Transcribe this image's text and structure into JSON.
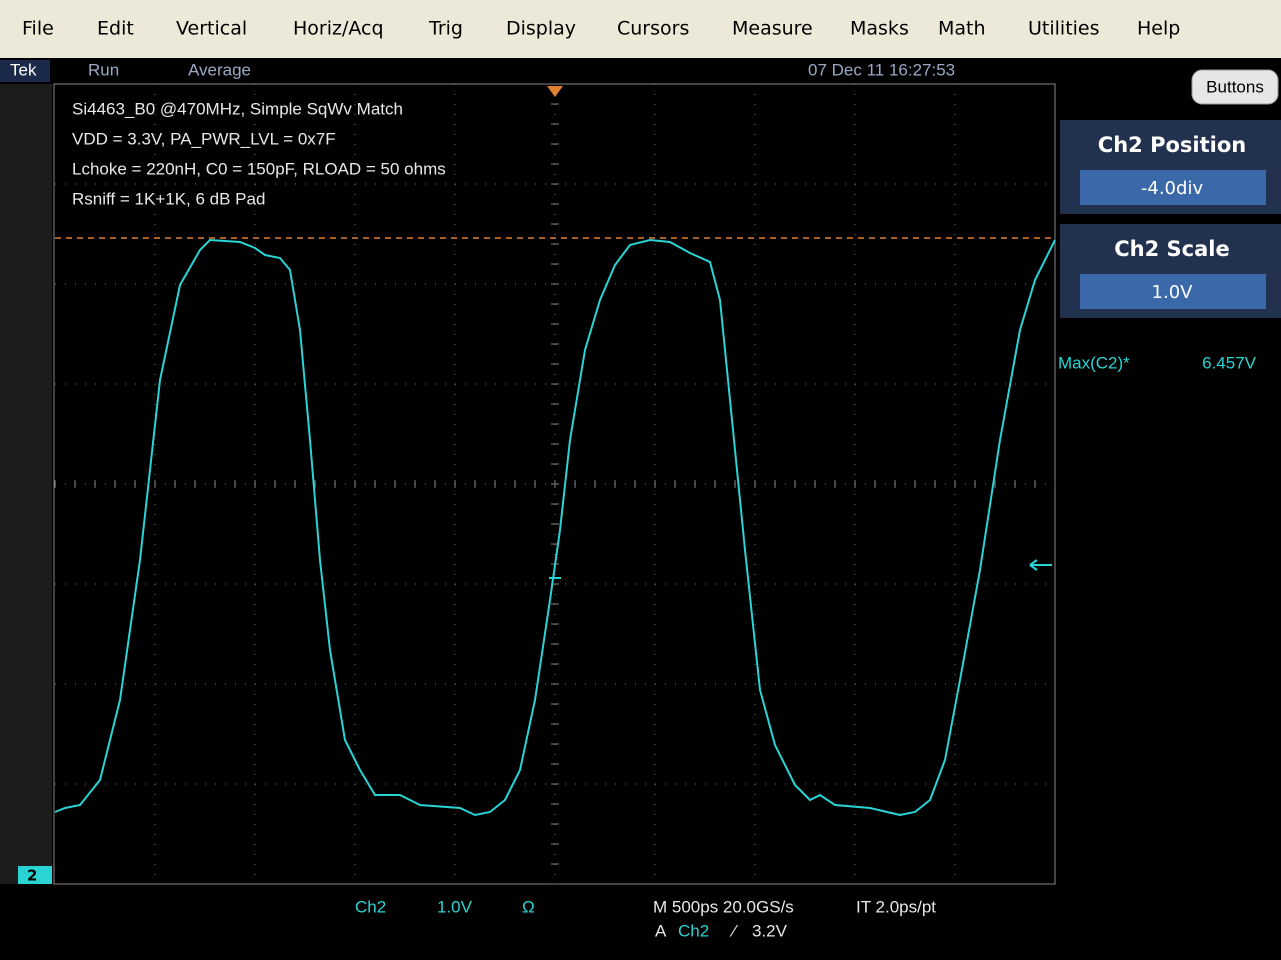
{
  "menu": [
    "File",
    "Edit",
    "Vertical",
    "Horiz/Acq",
    "Trig",
    "Display",
    "Cursors",
    "Measure",
    "Masks",
    "Math",
    "Utilities",
    "Help"
  ],
  "status": {
    "brand": "Tek",
    "state": "Run",
    "mode": "Average",
    "timestamp": "07 Dec 11 16:27:53"
  },
  "annotation": [
    "Si4463_B0 @470MHz, Simple SqWv Match",
    "VDD = 3.3V, PA_PWR_LVL = 0x7F",
    "Lchoke = 220nH, C0 = 150pF, RLOAD = 50 ohms",
    "Rsniff = 1K+1K, 6 dB Pad"
  ],
  "side_panel": {
    "button": "Buttons",
    "position": {
      "label": "Ch2 Position",
      "value": "-4.0div"
    },
    "scale": {
      "label": "Ch2 Scale",
      "value": "1.0V"
    },
    "measurement": {
      "label": "Max(C2)*",
      "value": "6.457V"
    }
  },
  "channel_marker": "2",
  "readout": {
    "channel": "Ch2",
    "scale": "1.0V",
    "coupling": "Ω",
    "timebase": "M 500ps 20.0GS/s",
    "resolution": "IT 2.0ps/pt",
    "trigger_prefix": "A",
    "trigger_channel": "Ch2",
    "trigger_slope": "⁄",
    "trigger_level": "3.2V"
  }
}
